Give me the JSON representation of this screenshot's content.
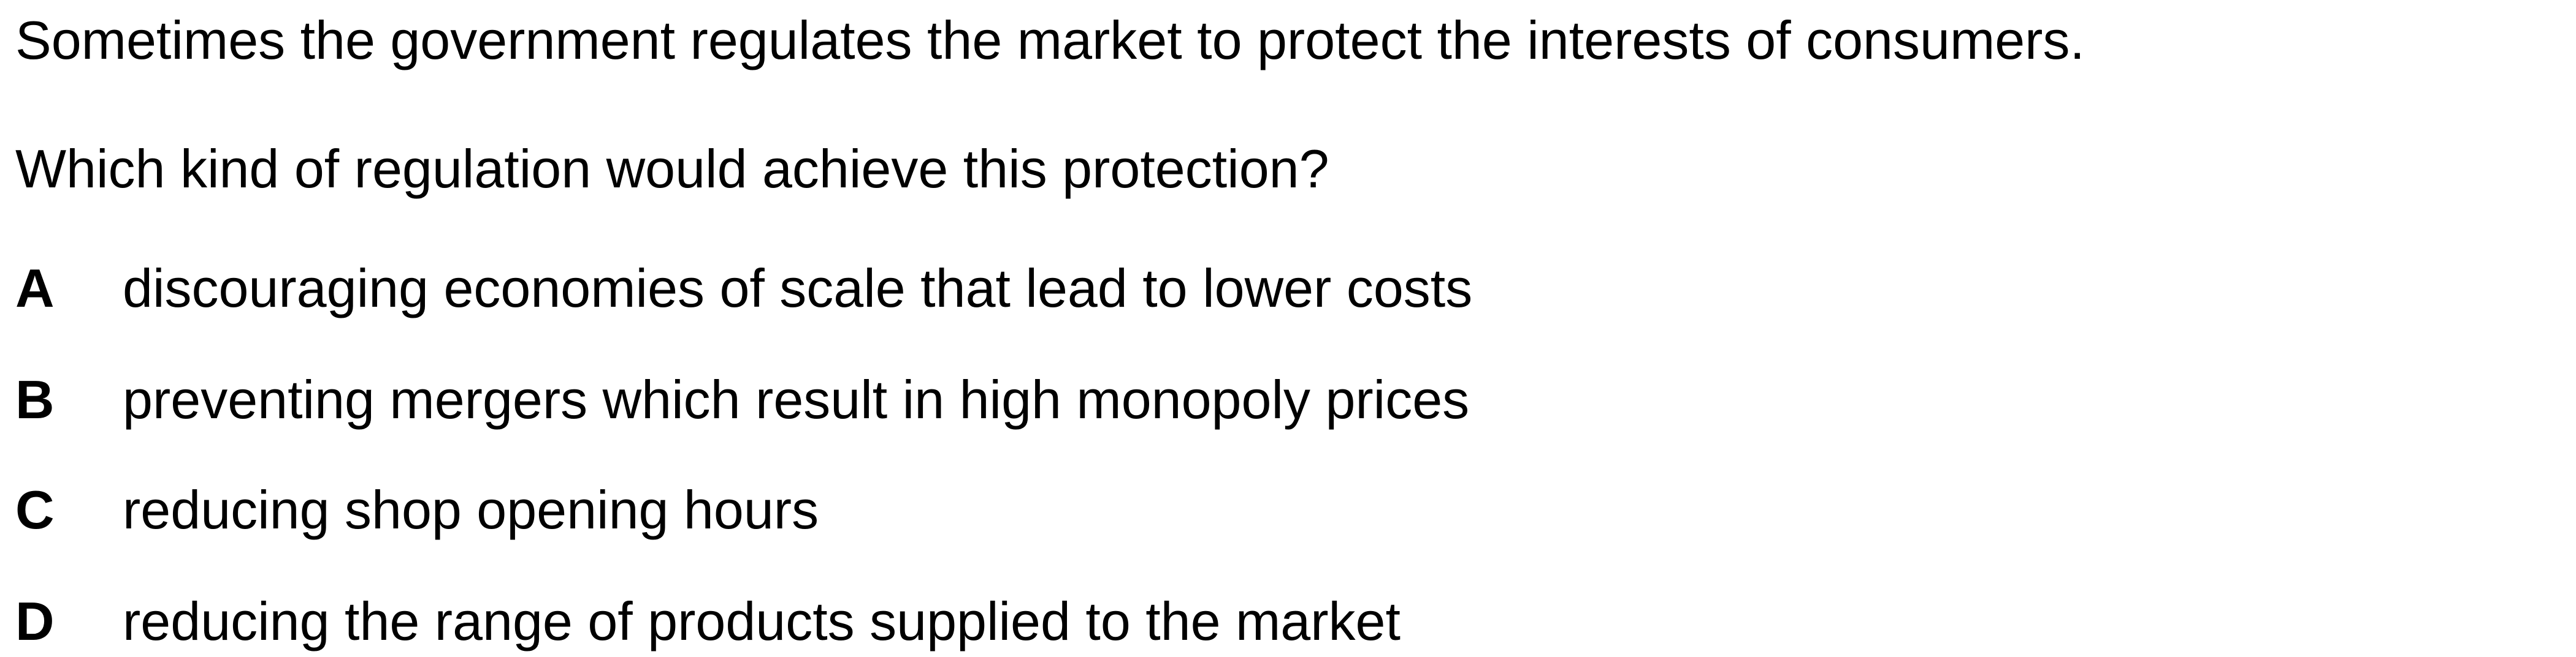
{
  "stem": {
    "intro": "Sometimes the government regulates the market to protect the interests of consumers.",
    "question": "Which kind of regulation would achieve this protection?"
  },
  "options": [
    {
      "letter": "A",
      "text": "discouraging economies of scale that lead to lower costs"
    },
    {
      "letter": "B",
      "text": "preventing mergers which result in high monopoly prices"
    },
    {
      "letter": "C",
      "text": "reducing shop opening hours"
    },
    {
      "letter": "D",
      "text": "reducing the range of products supplied to the market"
    }
  ]
}
